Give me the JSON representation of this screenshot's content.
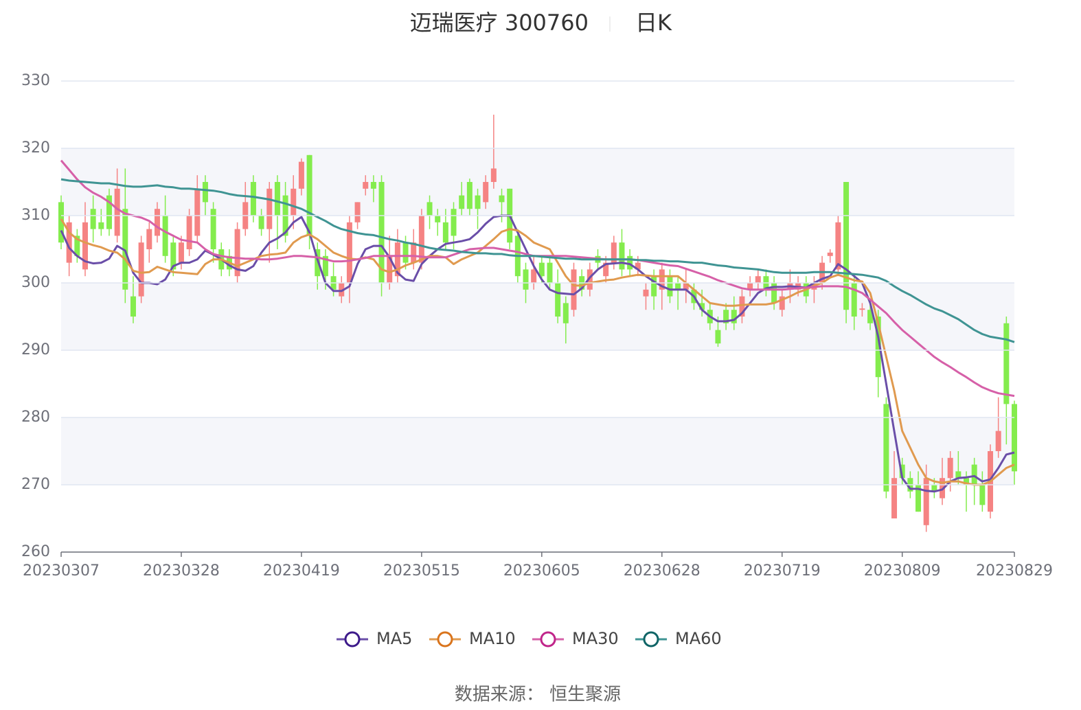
{
  "chart_data": {
    "type": "candlestick",
    "title": "迈瑞医疗 300760",
    "subtitle": "日K",
    "source": "数据来源： 恒生聚源",
    "categories": [
      "20230307",
      null,
      null,
      null,
      null,
      null,
      null,
      null,
      null,
      null,
      null,
      null,
      null,
      null,
      null,
      "20230328",
      null,
      null,
      null,
      null,
      null,
      null,
      null,
      null,
      null,
      null,
      null,
      null,
      null,
      null,
      "20230419",
      null,
      null,
      null,
      null,
      null,
      null,
      null,
      null,
      null,
      null,
      null,
      null,
      null,
      null,
      "20230515",
      null,
      null,
      null,
      null,
      null,
      null,
      null,
      null,
      null,
      null,
      null,
      null,
      null,
      null,
      "20230605",
      null,
      null,
      null,
      null,
      null,
      null,
      null,
      null,
      null,
      null,
      null,
      null,
      null,
      null,
      "20230628",
      null,
      null,
      null,
      null,
      null,
      null,
      null,
      null,
      null,
      null,
      null,
      null,
      null,
      null,
      "20230719",
      null,
      null,
      null,
      null,
      null,
      null,
      null,
      null,
      null,
      null,
      null,
      null,
      null,
      null,
      "20230809",
      null,
      null,
      null,
      null,
      null,
      null,
      null,
      null,
      null,
      null,
      null,
      null,
      null,
      "20230829"
    ],
    "open": [
      312,
      303,
      307,
      302,
      311,
      309,
      313,
      307,
      311,
      298,
      298,
      305,
      307,
      310,
      306,
      303,
      305,
      307,
      315,
      311,
      305,
      304,
      301,
      308,
      315,
      310,
      308,
      315,
      313,
      310,
      314,
      319,
      305,
      304,
      301,
      298,
      300,
      309,
      314,
      315,
      315,
      300,
      301,
      306,
      303,
      303,
      312,
      310,
      309,
      311,
      313,
      315,
      313,
      312,
      315,
      313,
      314,
      307,
      302,
      300,
      303,
      303,
      300,
      297,
      296,
      301,
      299,
      304,
      301,
      303,
      306,
      304,
      302,
      298,
      301,
      299,
      301,
      300,
      299,
      299,
      297,
      296,
      293,
      296,
      296,
      295,
      299,
      300,
      301,
      300,
      296,
      299,
      299,
      300,
      299,
      300,
      304,
      302,
      315,
      300,
      296,
      296,
      295,
      282,
      265,
      273,
      271,
      270,
      264,
      270,
      268,
      271,
      272,
      271,
      273,
      270,
      266,
      275,
      294,
      282
    ],
    "close": [
      306,
      309,
      304,
      309,
      308,
      308,
      308,
      314,
      299,
      295,
      306,
      308,
      311,
      304,
      302,
      306,
      310,
      314,
      312,
      305,
      302,
      302,
      308,
      312,
      310,
      308,
      314,
      310,
      307,
      314,
      318,
      307,
      301,
      301,
      299,
      300,
      309,
      312,
      315,
      314,
      300,
      304,
      306,
      303,
      306,
      310,
      310,
      309,
      306,
      307,
      311,
      311,
      311,
      315,
      317,
      312,
      306,
      301,
      299,
      302,
      301,
      300,
      295,
      294,
      302,
      299,
      302,
      303,
      303,
      306,
      302,
      302,
      303,
      299,
      298,
      302,
      298,
      299,
      300,
      297,
      296,
      294,
      291,
      294,
      294,
      298,
      300,
      301,
      299,
      297,
      298,
      300,
      300,
      298,
      300,
      303,
      304.5,
      309,
      296,
      295,
      296.2,
      294,
      286,
      269,
      271,
      271,
      269,
      266,
      271,
      269,
      271,
      274,
      271,
      270,
      270,
      267,
      275,
      278,
      282,
      272
    ],
    "low": [
      305,
      301,
      303,
      301,
      306,
      307,
      307,
      306,
      297,
      294,
      297,
      303,
      306,
      303,
      301,
      302,
      304,
      306,
      310,
      303,
      301,
      301,
      300,
      307,
      309,
      307,
      303,
      305,
      306,
      308,
      313,
      305,
      299,
      299,
      298,
      297,
      297,
      308,
      313,
      312,
      298,
      299,
      300,
      302,
      302,
      302,
      308,
      307,
      305,
      305,
      310,
      310,
      308,
      311,
      314,
      309,
      305,
      300,
      297,
      299,
      300,
      299,
      294,
      291,
      295,
      298,
      298,
      302,
      300,
      302,
      301,
      301,
      301,
      296,
      296,
      296,
      297,
      296,
      297,
      296,
      295,
      293,
      290.5,
      293,
      293,
      294,
      298,
      299,
      298,
      296,
      295,
      297,
      298,
      297,
      297,
      299,
      303,
      301,
      294,
      293,
      295,
      293,
      283,
      268,
      265,
      270,
      268,
      266,
      263,
      268,
      267,
      269,
      270,
      266,
      267,
      266,
      265,
      274,
      276,
      270
    ],
    "high": [
      313,
      310,
      308,
      312,
      313,
      311,
      314,
      317,
      317,
      301,
      307,
      309,
      312,
      313,
      307,
      307,
      311,
      316,
      316,
      312,
      306,
      305,
      309,
      315,
      316,
      311,
      315,
      316,
      315,
      316,
      318.5,
      319,
      306,
      305,
      303,
      301,
      310,
      312,
      316,
      316,
      316,
      307,
      308,
      307,
      308,
      311,
      313,
      311,
      311,
      312,
      315,
      315.5,
      314,
      316,
      325,
      314,
      314,
      308,
      303,
      304,
      304,
      304,
      302,
      298,
      303,
      302,
      303,
      305,
      304,
      307,
      308,
      305,
      304,
      300,
      302,
      303,
      302,
      301,
      302,
      300,
      299,
      297,
      295,
      297,
      298,
      299,
      301,
      302,
      302,
      301,
      299,
      302,
      301,
      301,
      301,
      304,
      305,
      310,
      315,
      301,
      297,
      297,
      296,
      283,
      275,
      274,
      272,
      272,
      273,
      271,
      274,
      275,
      275,
      272,
      274,
      272,
      276,
      283,
      295,
      282.5
    ],
    "up_color": "#f58383",
    "down_color": "#84ec4d",
    "series": [
      {
        "name": "MA5",
        "color": "#6a4ea8",
        "marker_color": "#3d1a8a",
        "values": [
          307.8,
          305.2,
          304.0,
          303.2,
          302.9,
          303.0,
          303.6,
          305.5,
          304.8,
          301.5,
          300.0,
          300.0,
          299.8,
          300.5,
          302.5,
          303.0,
          303.0,
          303.5,
          304.8,
          304.2,
          303.5,
          302.6,
          302.0,
          301.8,
          302.5,
          304.5,
          306.0,
          306.6,
          307.5,
          309.0,
          309.8,
          307.5,
          303.5,
          300.0,
          298.8,
          298.8,
          299.5,
          302.8,
          305.0,
          305.5,
          305.5,
          303.8,
          301.5,
          300.5,
          300.3,
          302.8,
          304.0,
          305.0,
          305.8,
          306.0,
          306.2,
          306.5,
          307.5,
          308.8,
          309.8,
          310.0,
          310.0,
          307.5,
          305.0,
          302.5,
          300.5,
          299.0,
          298.5,
          298.4,
          298.3,
          299.2,
          300.8,
          302.0,
          302.8,
          302.9,
          303.0,
          302.8,
          302.0,
          301.0,
          300.2,
          299.5,
          299.0,
          299.0,
          299.0,
          298.0,
          296.0,
          295.0,
          294.3,
          294.3,
          294.5,
          295.5,
          297.0,
          298.5,
          299.2,
          299.4,
          299.4,
          299.5,
          299.4,
          299.3,
          300.0,
          300.6,
          301.0,
          302.8,
          302.0,
          301.0,
          300.0,
          297.0,
          292.0,
          285.0,
          278.0,
          271.0,
          269.4,
          269.4,
          269.1,
          269.0,
          269.3,
          270.5,
          271.0,
          271.1,
          271.3,
          270.5,
          270.8,
          272.5,
          274.5,
          274.8
        ]
      },
      {
        "name": "MA10",
        "color": "#e09a4f",
        "marker_color": "#d9741c",
        "values": [
          309.5,
          307.5,
          306.5,
          306.0,
          305.6,
          305.3,
          304.8,
          304.5,
          303.5,
          301.8,
          301.5,
          301.6,
          302.4,
          302.0,
          301.6,
          301.5,
          301.4,
          301.3,
          302.8,
          303.5,
          303.5,
          303.0,
          302.5,
          303.0,
          303.5,
          304.0,
          304.2,
          304.3,
          304.5,
          306.0,
          306.8,
          307.2,
          306.5,
          305.5,
          304.5,
          304.0,
          303.6,
          303.5,
          303.8,
          303.5,
          302.0,
          301.6,
          302.0,
          302.6,
          303.0,
          303.5,
          304.0,
          304.0,
          303.8,
          302.8,
          303.5,
          304.0,
          304.5,
          305.5,
          306.5,
          307.6,
          308.0,
          307.8,
          307.0,
          306.0,
          305.5,
          305.0,
          303.0,
          301.0,
          299.6,
          299.6,
          300.0,
          300.2,
          300.4,
          300.5,
          300.8,
          301.0,
          301.2,
          301.1,
          301.0,
          301.0,
          301.0,
          301.0,
          300.0,
          299.0,
          298.0,
          297.0,
          296.8,
          296.6,
          296.6,
          296.7,
          296.8,
          296.8,
          296.8,
          297.0,
          297.5,
          298.0,
          298.6,
          299.0,
          299.6,
          300.0,
          300.8,
          301.2,
          300.8,
          300.4,
          300.2,
          298.5,
          294.0,
          289.0,
          284.0,
          278.0,
          275.5,
          273.0,
          271.0,
          270.5,
          270.3,
          270.5,
          270.5,
          270.2,
          270.0,
          270.0,
          270.5,
          271.5,
          272.5,
          273.0
        ]
      },
      {
        "name": "MA30",
        "color": "#d660a8",
        "marker_color": "#c0258a",
        "values": [
          318.2,
          316.8,
          315.4,
          314.2,
          313.4,
          312.8,
          312.0,
          311.0,
          310.3,
          310.0,
          309.7,
          309.2,
          308.3,
          307.6,
          307.0,
          306.4,
          306.2,
          306.0,
          305.0,
          304.3,
          304.0,
          303.8,
          303.7,
          303.6,
          303.6,
          303.5,
          303.5,
          303.6,
          303.8,
          304.0,
          304.0,
          303.9,
          303.8,
          303.5,
          303.2,
          303.2,
          303.3,
          303.5,
          303.7,
          304.0,
          304.0,
          304.0,
          304.0,
          304.0,
          304.0,
          303.9,
          303.8,
          303.8,
          303.8,
          304.2,
          304.6,
          305.0,
          305.1,
          305.2,
          305.2,
          305.0,
          304.8,
          304.6,
          304.3,
          304.0,
          304.0,
          304.0,
          304.0,
          304.0,
          303.9,
          303.8,
          303.7,
          303.6,
          303.5,
          303.5,
          303.5,
          303.5,
          303.4,
          303.2,
          303.0,
          302.8,
          302.6,
          302.5,
          302.1,
          301.7,
          301.3,
          300.9,
          300.4,
          300.0,
          299.6,
          299.2,
          299.0,
          299.0,
          299.0,
          299.0,
          299.0,
          299.1,
          299.2,
          299.3,
          299.4,
          299.5,
          299.5,
          299.5,
          299.4,
          299.0,
          298.5,
          297.5,
          296.5,
          295.5,
          294.2,
          293.0,
          292.0,
          291.0,
          290.0,
          289.0,
          288.2,
          287.5,
          286.7,
          286.0,
          285.2,
          284.5,
          284.0,
          283.6,
          283.4,
          283.2
        ]
      },
      {
        "name": "MA60",
        "color": "#3f9493",
        "marker_color": "#0f6466",
        "values": [
          315.4,
          315.2,
          315.1,
          315.0,
          314.9,
          314.8,
          314.8,
          314.6,
          314.4,
          314.3,
          314.3,
          314.4,
          314.5,
          314.3,
          314.2,
          314.0,
          314.0,
          313.9,
          313.8,
          313.7,
          313.5,
          313.2,
          313.0,
          312.9,
          312.8,
          312.6,
          312.4,
          312.1,
          311.8,
          311.4,
          311.0,
          310.4,
          309.8,
          309.2,
          308.5,
          308.0,
          307.7,
          307.4,
          307.2,
          307.1,
          306.8,
          306.5,
          306.3,
          306.0,
          305.8,
          305.5,
          305.2,
          305.0,
          304.9,
          304.8,
          304.6,
          304.5,
          304.4,
          304.4,
          304.3,
          304.3,
          304.1,
          304.0,
          304.0,
          304.0,
          303.9,
          303.8,
          303.7,
          303.6,
          303.6,
          303.5,
          303.5,
          303.5,
          303.5,
          303.5,
          303.5,
          303.5,
          303.4,
          303.4,
          303.3,
          303.3,
          303.2,
          303.2,
          303.1,
          303.0,
          303.0,
          302.8,
          302.6,
          302.5,
          302.3,
          302.2,
          302.1,
          302.0,
          301.8,
          301.6,
          301.5,
          301.5,
          301.5,
          301.5,
          301.6,
          301.6,
          301.6,
          301.5,
          301.4,
          301.3,
          301.2,
          301.0,
          300.8,
          300.3,
          299.5,
          298.8,
          298.2,
          297.5,
          296.8,
          296.2,
          295.8,
          295.2,
          294.6,
          293.8,
          293.0,
          292.4,
          292.0,
          291.8,
          291.6,
          291.2
        ]
      }
    ],
    "ylim": [
      260,
      330
    ],
    "yticks": [
      260,
      270,
      280,
      290,
      300,
      310,
      320,
      330
    ],
    "grid": true
  }
}
